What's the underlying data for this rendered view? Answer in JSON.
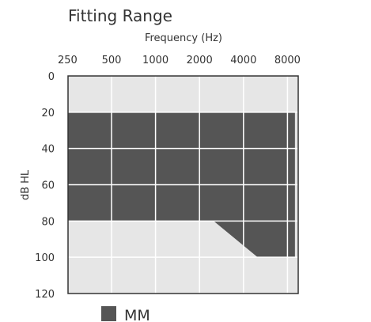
{
  "chart_data": {
    "type": "area",
    "title": "Fitting Range",
    "xlabel": "Frequency (Hz)",
    "ylabel": "dB HL",
    "x_scale": "log",
    "x_ticks": [
      "250",
      "500",
      "1000",
      "2000",
      "4000",
      "8000"
    ],
    "y_ticks": [
      "0",
      "20",
      "40",
      "60",
      "80",
      "100",
      "120"
    ],
    "ylim": [
      0,
      120
    ],
    "y_inverted": true,
    "grid": true,
    "legend_position": "bottom-left",
    "series": [
      {
        "name": "MM",
        "color": "#555555",
        "upper_edge": [
          {
            "x": 250,
            "y": 20
          },
          {
            "x": 9000,
            "y": 20
          }
        ],
        "lower_edge": [
          {
            "x": 250,
            "y": 80
          },
          {
            "x": 2500,
            "y": 80
          },
          {
            "x": 5000,
            "y": 100
          },
          {
            "x": 9000,
            "y": 100
          }
        ]
      }
    ],
    "background_color": "#e6e6e6",
    "grid_color": "#ffffff",
    "axis_color": "#333333"
  }
}
